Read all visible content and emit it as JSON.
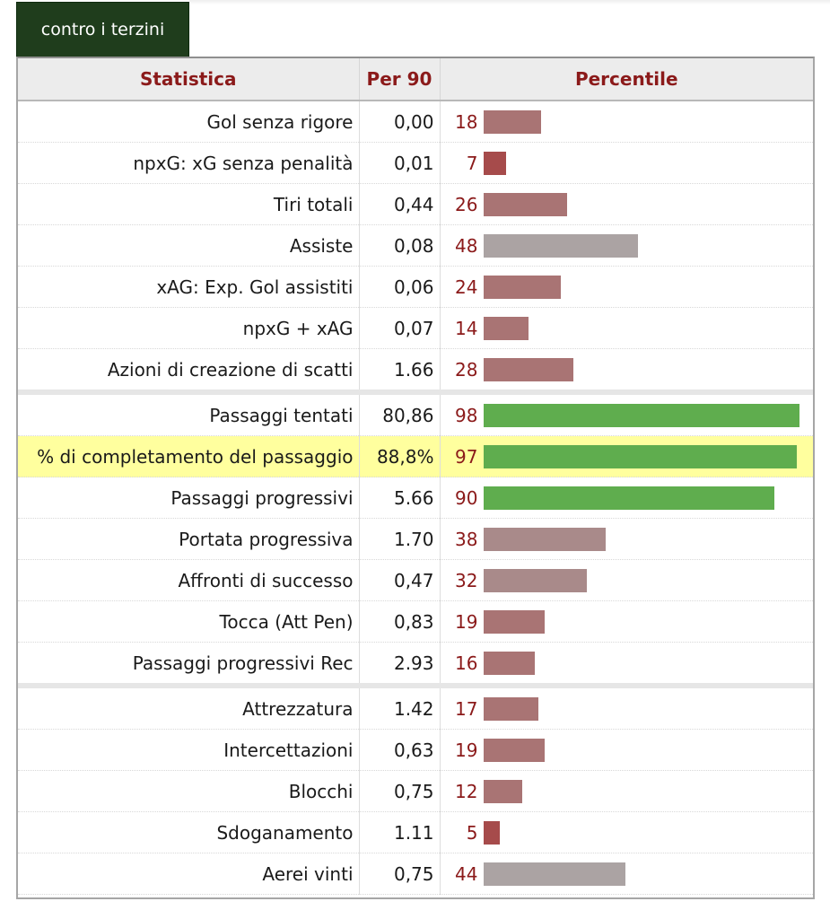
{
  "tab": {
    "label": "contro i terzini"
  },
  "headers": {
    "stat": "Statistica",
    "per90": "Per 90",
    "percentile": "Percentile"
  },
  "colors": {
    "high": "#5fad4e",
    "mid": "#aba3a3",
    "midlow": "#a98a8a",
    "low": "#a97474",
    "verylow": "#a64b4b",
    "highlight": "#ffff9e",
    "header_text": "#8b1a1a"
  },
  "rows": [
    {
      "stat": "Gol senza rigore",
      "per90": "0,00",
      "percentile": 18
    },
    {
      "stat": "npxG: xG senza penalità",
      "per90": "0,01",
      "percentile": 7
    },
    {
      "stat": "Tiri totali",
      "per90": "0,44",
      "percentile": 26
    },
    {
      "stat": "Assiste",
      "per90": "0,08",
      "percentile": 48
    },
    {
      "stat": "xAG: Exp. Gol assistiti",
      "per90": "0,06",
      "percentile": 24
    },
    {
      "stat": "npxG + xAG",
      "per90": "0,07",
      "percentile": 14
    },
    {
      "stat": "Azioni di creazione di scatti",
      "per90": "1.66",
      "percentile": 28
    },
    {
      "stat": "Passaggi tentati",
      "per90": "80,86",
      "percentile": 98,
      "sep": true
    },
    {
      "stat": "% di completamento del passaggio",
      "per90": "88,8%",
      "percentile": 97,
      "highlight": true
    },
    {
      "stat": "Passaggi progressivi",
      "per90": "5.66",
      "percentile": 90
    },
    {
      "stat": "Portata progressiva",
      "per90": "1.70",
      "percentile": 38
    },
    {
      "stat": "Affronti di successo",
      "per90": "0,47",
      "percentile": 32
    },
    {
      "stat": "Tocca (Att Pen)",
      "per90": "0,83",
      "percentile": 19
    },
    {
      "stat": "Passaggi progressivi Rec",
      "per90": "2.93",
      "percentile": 16
    },
    {
      "stat": "Attrezzatura",
      "per90": "1.42",
      "percentile": 17,
      "sep": true
    },
    {
      "stat": "Intercettazioni",
      "per90": "0,63",
      "percentile": 19
    },
    {
      "stat": "Blocchi",
      "per90": "0,75",
      "percentile": 12
    },
    {
      "stat": "Sdoganamento",
      "per90": "1.11",
      "percentile": 5
    },
    {
      "stat": "Aerei vinti",
      "per90": "0,75",
      "percentile": 44
    }
  ]
}
